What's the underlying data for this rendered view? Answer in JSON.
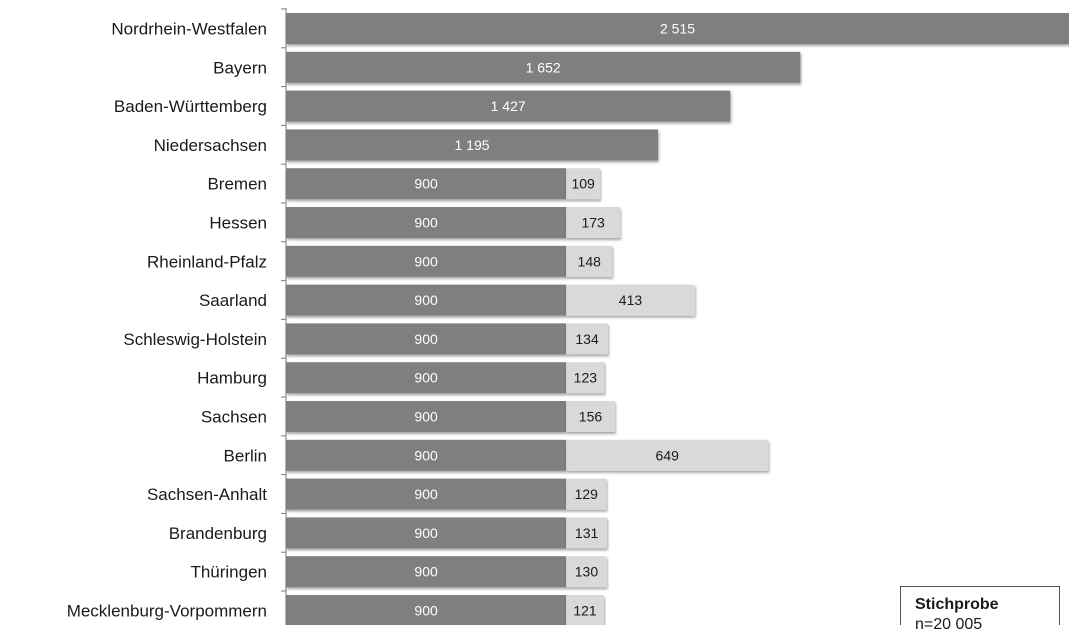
{
  "chart_data": {
    "type": "bar",
    "orientation": "horizontal",
    "stacked": true,
    "categories": [
      "Nordrhein-Westfalen",
      "Bayern",
      "Baden-Württemberg",
      "Niedersachsen",
      "Bremen",
      "Hessen",
      "Rheinland-Pfalz",
      "Saarland",
      "Schleswig-Holstein",
      "Hamburg",
      "Sachsen",
      "Berlin",
      "Sachsen-Anhalt",
      "Brandenburg",
      "Thüringen",
      "Mecklenburg-Vorpommern"
    ],
    "series": [
      {
        "values": [
          2515,
          1652,
          1427,
          1195,
          900,
          900,
          900,
          900,
          900,
          900,
          900,
          900,
          900,
          900,
          900,
          900
        ]
      },
      {
        "values": [
          0,
          0,
          0,
          0,
          109,
          173,
          148,
          413,
          134,
          123,
          156,
          649,
          129,
          131,
          130,
          121
        ]
      }
    ],
    "value_labels": [
      [
        "2 515",
        "1 652",
        "1 427",
        "1 195",
        "900",
        "900",
        "900",
        "900",
        "900",
        "900",
        "900",
        "900",
        "900",
        "900",
        "900",
        "900"
      ],
      [
        "",
        "",
        "",
        "",
        "109",
        "173",
        "148",
        "413",
        "134",
        "123",
        "156",
        "649",
        "129",
        "131",
        "130",
        "121"
      ]
    ],
    "colors": {
      "primary": "#7f7f7f",
      "secondary": "#d9d9d9",
      "axis": "#7a7a7a"
    },
    "xlim": [
      0,
      2515
    ],
    "grid": false,
    "legend": "none"
  },
  "info_box": {
    "title": "Stichprobe",
    "value": "n=20 005"
  }
}
